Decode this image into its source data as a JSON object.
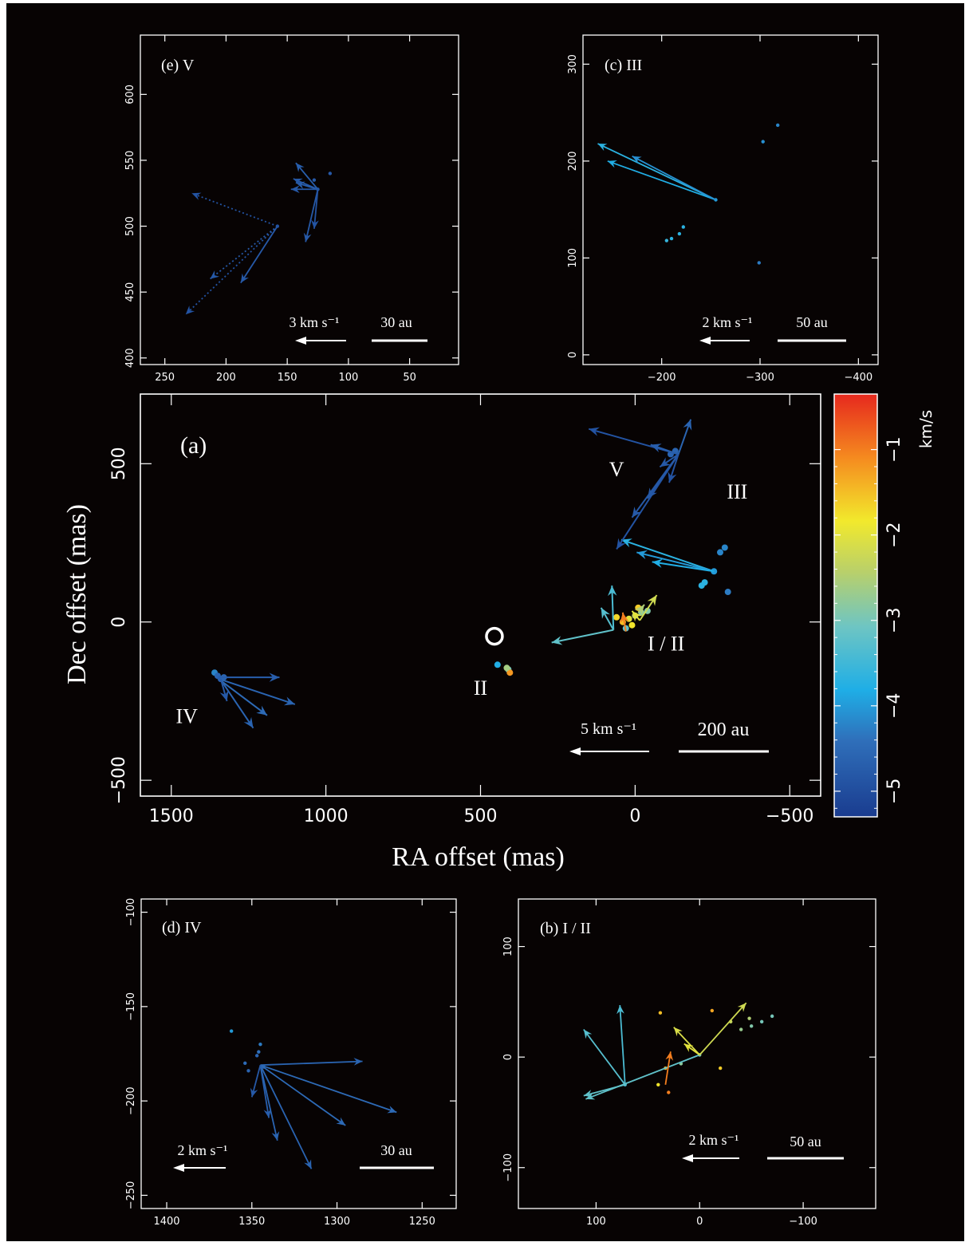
{
  "colorbar": {
    "label": "km/s",
    "tick_labels": [
      "−1",
      "−2",
      "−3",
      "−4",
      "−5"
    ],
    "range": [
      -5.3,
      -0.35
    ],
    "colormap": "jet"
  },
  "chart_data": [
    {
      "id": "a",
      "type": "scatter",
      "title": "(a)",
      "xlabel": "RA offset (mas)",
      "ylabel": "Dec offset (mas)",
      "xlim": [
        1600,
        -600
      ],
      "ylim": [
        -550,
        720
      ],
      "xticks": [
        1500,
        1000,
        500,
        0,
        -500
      ],
      "xtick_labels": [
        "1500",
        "1000",
        "500",
        "0",
        "−500"
      ],
      "yticks": [
        500,
        0,
        -500
      ],
      "ytick_labels": [
        "500",
        "0",
        "−500"
      ],
      "group_labels": [
        {
          "text": "V",
          "x": 60,
          "y": 460
        },
        {
          "text": "III",
          "x": -330,
          "y": 390
        },
        {
          "text": "I / II",
          "x": -100,
          "y": -90
        },
        {
          "text": "II",
          "x": 500,
          "y": -230
        },
        {
          "text": "IV",
          "x": 1450,
          "y": -320
        }
      ],
      "velocity_scale_label": "5 km s⁻¹",
      "length_scale_label": "200 au",
      "reference_marker": {
        "x": 455,
        "y": -45
      },
      "spots": [
        {
          "x": 1360,
          "y": -160,
          "v": -4.2
        },
        {
          "x": 1350,
          "y": -170,
          "v": -4.6
        },
        {
          "x": 1340,
          "y": -180,
          "v": -4.7
        },
        {
          "x": 1330,
          "y": -175,
          "v": -4.6
        },
        {
          "x": 445,
          "y": -135,
          "v": -3.8
        },
        {
          "x": 410,
          "y": -150,
          "v": -3.0
        },
        {
          "x": 405,
          "y": -160,
          "v": -1.2
        },
        {
          "x": 415,
          "y": -145,
          "v": -2.6
        },
        {
          "x": 30,
          "y": -20,
          "v": -3.2
        },
        {
          "x": 20,
          "y": 10,
          "v": -2.0
        },
        {
          "x": 0,
          "y": 20,
          "v": -2.4
        },
        {
          "x": -20,
          "y": 30,
          "v": -2.8
        },
        {
          "x": -40,
          "y": 35,
          "v": -2.9
        },
        {
          "x": 10,
          "y": -10,
          "v": -1.8
        },
        {
          "x": 40,
          "y": 0,
          "v": -1.5
        },
        {
          "x": 60,
          "y": 15,
          "v": -1.7
        },
        {
          "x": -10,
          "y": 45,
          "v": -1.6
        },
        {
          "x": -255,
          "y": 160,
          "v": -4.0
        },
        {
          "x": -275,
          "y": 220,
          "v": -4.2
        },
        {
          "x": -290,
          "y": 235,
          "v": -4.2
        },
        {
          "x": -215,
          "y": 115,
          "v": -3.7
        },
        {
          "x": -225,
          "y": 125,
          "v": -3.7
        },
        {
          "x": -300,
          "y": 95,
          "v": -4.3
        },
        {
          "x": -115,
          "y": 530,
          "v": -4.6
        },
        {
          "x": -130,
          "y": 540,
          "v": -4.6
        }
      ],
      "vectors": [
        {
          "x": 1345,
          "y": -175,
          "dx": -195,
          "dy": 0,
          "v": -4.7
        },
        {
          "x": 1345,
          "y": -180,
          "dx": -245,
          "dy": -80,
          "v": -4.6
        },
        {
          "x": 1340,
          "y": -185,
          "dx": -150,
          "dy": -110,
          "v": -4.5
        },
        {
          "x": 1335,
          "y": -190,
          "dx": -100,
          "dy": -145,
          "v": -4.6
        },
        {
          "x": 1340,
          "y": -180,
          "dx": -20,
          "dy": -70,
          "v": -4.8
        },
        {
          "x": 70,
          "y": -25,
          "dx": 5,
          "dy": 140,
          "v": -3.4
        },
        {
          "x": 70,
          "y": -25,
          "dx": 40,
          "dy": 70,
          "v": -3.3
        },
        {
          "x": 70,
          "y": -25,
          "dx": 200,
          "dy": -40,
          "v": -3.2
        },
        {
          "x": -15,
          "y": 5,
          "dx": -55,
          "dy": 80,
          "v": -2.2
        },
        {
          "x": -15,
          "y": 5,
          "dx": 25,
          "dy": 30,
          "v": -2.0
        },
        {
          "x": 30,
          "y": -30,
          "dx": 10,
          "dy": 60,
          "v": -1.0
        },
        {
          "x": -10,
          "y": 30,
          "dx": -20,
          "dy": 25,
          "v": -2.5
        },
        {
          "x": -255,
          "y": 160,
          "dx": 300,
          "dy": 100,
          "v": -3.7
        },
        {
          "x": -255,
          "y": 160,
          "dx": 250,
          "dy": 60,
          "v": -4.0
        },
        {
          "x": -255,
          "y": 160,
          "dx": 200,
          "dy": 30,
          "v": -3.8
        },
        {
          "x": -140,
          "y": 530,
          "dx": 290,
          "dy": 80,
          "v": -4.9
        },
        {
          "x": -140,
          "y": 530,
          "dx": 200,
          "dy": -300,
          "v": -4.9
        },
        {
          "x": -140,
          "y": 530,
          "dx": 150,
          "dy": -200,
          "v": -4.8
        },
        {
          "x": -140,
          "y": 530,
          "dx": 100,
          "dy": -140,
          "v": -4.8
        },
        {
          "x": -140,
          "y": 530,
          "dx": -40,
          "dy": 110,
          "v": -4.6
        },
        {
          "x": -140,
          "y": 530,
          "dx": 90,
          "dy": 30,
          "v": -4.7
        },
        {
          "x": -140,
          "y": 530,
          "dx": 30,
          "dy": -90,
          "v": -4.9
        },
        {
          "x": -140,
          "y": 530,
          "dx": 60,
          "dy": -40,
          "v": -4.8
        }
      ]
    },
    {
      "id": "b",
      "type": "scatter",
      "title": "(b)  I / II",
      "xlim": [
        175,
        -170
      ],
      "ylim": [
        -137,
        143
      ],
      "xticks": [
        100,
        0,
        -100
      ],
      "xtick_labels": [
        "100",
        "0",
        "−100"
      ],
      "yticks": [
        100,
        0,
        -100
      ],
      "ytick_labels": [
        "100",
        "0",
        "−100"
      ],
      "velocity_scale_label": "2 km s⁻¹",
      "length_scale_label": "50 au",
      "spots": [
        {
          "x": 72,
          "y": -25,
          "v": -3.4
        },
        {
          "x": 40,
          "y": -25,
          "v": -1.8
        },
        {
          "x": 30,
          "y": -32,
          "v": -1.0
        },
        {
          "x": 33,
          "y": -10,
          "v": -1.4
        },
        {
          "x": 38,
          "y": 40,
          "v": -1.5
        },
        {
          "x": -12,
          "y": 42,
          "v": -1.3
        },
        {
          "x": -20,
          "y": -10,
          "v": -1.6
        },
        {
          "x": -30,
          "y": 32,
          "v": -2.3
        },
        {
          "x": -40,
          "y": 25,
          "v": -2.7
        },
        {
          "x": -50,
          "y": 28,
          "v": -2.9
        },
        {
          "x": -60,
          "y": 32,
          "v": -3.0
        },
        {
          "x": -70,
          "y": 37,
          "v": -3.0
        },
        {
          "x": -48,
          "y": 35,
          "v": -2.5
        },
        {
          "x": 0,
          "y": 2,
          "v": -2.9
        },
        {
          "x": 18,
          "y": -6,
          "v": -2.8
        }
      ],
      "vectors": [
        {
          "x": 72,
          "y": -25,
          "dx": 5,
          "dy": 72,
          "v": -3.4
        },
        {
          "x": 72,
          "y": -25,
          "dx": 40,
          "dy": 50,
          "v": -3.3
        },
        {
          "x": 72,
          "y": -25,
          "dx": 40,
          "dy": -10,
          "v": -3.2
        },
        {
          "x": 0,
          "y": 2,
          "dx": 110,
          "dy": -40,
          "v": -3.2
        },
        {
          "x": 0,
          "y": 2,
          "dx": -45,
          "dy": 47,
          "v": -2.2
        },
        {
          "x": 0,
          "y": 2,
          "dx": 25,
          "dy": 25,
          "v": -2.1
        },
        {
          "x": 0,
          "y": 2,
          "dx": 15,
          "dy": 10,
          "v": -2.0
        },
        {
          "x": 33,
          "y": -25,
          "dx": -5,
          "dy": 30,
          "v": -1.0
        }
      ]
    },
    {
      "id": "c",
      "type": "scatter",
      "title": "(c)  III",
      "xlim": [
        -120,
        -420
      ],
      "ylim": [
        -10,
        330
      ],
      "xticks": [
        -200,
        -300,
        -400
      ],
      "xtick_labels": [
        "−200",
        "−300",
        "−400"
      ],
      "yticks": [
        0,
        100,
        200,
        300
      ],
      "ytick_labels": [
        "0",
        "100",
        "200",
        "300"
      ],
      "velocity_scale_label": "2 km s⁻¹",
      "length_scale_label": "50 au",
      "spots": [
        {
          "x": -255,
          "y": 160,
          "v": -4.0
        },
        {
          "x": -303,
          "y": 220,
          "v": -4.1
        },
        {
          "x": -318,
          "y": 237,
          "v": -4.2
        },
        {
          "x": -205,
          "y": 118,
          "v": -3.6
        },
        {
          "x": -210,
          "y": 120,
          "v": -3.7
        },
        {
          "x": -218,
          "y": 125,
          "v": -3.7
        },
        {
          "x": -222,
          "y": 132,
          "v": -3.7
        },
        {
          "x": -299,
          "y": 95,
          "v": -4.3
        }
      ],
      "vectors": [
        {
          "x": -255,
          "y": 160,
          "dx": 120,
          "dy": 58,
          "v": -3.7
        },
        {
          "x": -255,
          "y": 160,
          "dx": 110,
          "dy": 40,
          "v": -3.8
        },
        {
          "x": -255,
          "y": 160,
          "dx": 85,
          "dy": 45,
          "v": -4.1
        }
      ]
    },
    {
      "id": "d",
      "type": "scatter",
      "title": "(d)  IV",
      "xlim": [
        1415,
        1230
      ],
      "ylim": [
        -257,
        -93
      ],
      "xticks": [
        1400,
        1350,
        1300,
        1250
      ],
      "xtick_labels": [
        "1400",
        "1350",
        "1300",
        "1250"
      ],
      "yticks": [
        -100,
        -150,
        -200,
        -250
      ],
      "ytick_labels": [
        "−100",
        "−150",
        "−200",
        "−250"
      ],
      "velocity_scale_label": "2 km s⁻¹",
      "length_scale_label": "30 au",
      "spots": [
        {
          "x": 1362,
          "y": -163,
          "v": -4.0
        },
        {
          "x": 1345,
          "y": -170,
          "v": -4.3
        },
        {
          "x": 1346,
          "y": -174,
          "v": -4.4
        },
        {
          "x": 1354,
          "y": -180,
          "v": -4.5
        },
        {
          "x": 1352,
          "y": -184,
          "v": -4.6
        },
        {
          "x": 1347,
          "y": -176,
          "v": -4.6
        },
        {
          "x": 1343,
          "y": -182,
          "v": -4.5
        }
      ],
      "vectors": [
        {
          "x": 1345,
          "y": -181,
          "dx": -60,
          "dy": 2,
          "v": -4.6
        },
        {
          "x": 1345,
          "y": -181,
          "dx": -80,
          "dy": -25,
          "v": -4.5
        },
        {
          "x": 1345,
          "y": -181,
          "dx": -50,
          "dy": -32,
          "v": -4.5
        },
        {
          "x": 1345,
          "y": -181,
          "dx": -30,
          "dy": -55,
          "v": -4.6
        },
        {
          "x": 1345,
          "y": -181,
          "dx": -5,
          "dy": -28,
          "v": -4.7
        },
        {
          "x": 1345,
          "y": -181,
          "dx": -10,
          "dy": -40,
          "v": -4.6
        },
        {
          "x": 1345,
          "y": -181,
          "dx": 5,
          "dy": -17,
          "v": -4.8
        }
      ]
    },
    {
      "id": "e",
      "type": "scatter",
      "title": "(e)  V",
      "xlim": [
        270,
        10
      ],
      "ylim": [
        395,
        645
      ],
      "xticks": [
        250,
        200,
        150,
        100,
        50
      ],
      "xtick_labels": [
        "250",
        "200",
        "150",
        "100",
        "50"
      ],
      "yticks": [
        400,
        450,
        500,
        550,
        600
      ],
      "ytick_labels": [
        "400",
        "450",
        "500",
        "550",
        "600"
      ],
      "velocity_scale_label": "3 km s⁻¹",
      "length_scale_label": "30 au",
      "spots": [
        {
          "x": 125,
          "y": 528,
          "v": -4.8
        },
        {
          "x": 128,
          "y": 535,
          "v": -4.8
        },
        {
          "x": 158,
          "y": 500,
          "v": -4.9
        },
        {
          "x": 115,
          "y": 540,
          "v": -4.8
        }
      ],
      "vectors": [
        {
          "x": 158,
          "y": 500,
          "dx": 70,
          "dy": 25,
          "v": -4.9
        },
        {
          "x": 158,
          "y": 500,
          "dx": 75,
          "dy": -67,
          "v": -4.9
        },
        {
          "x": 158,
          "y": 500,
          "dx": 55,
          "dy": -40,
          "v": -4.8
        },
        {
          "x": 158,
          "y": 500,
          "dx": 30,
          "dy": -43,
          "v": -4.8
        },
        {
          "x": 125,
          "y": 528,
          "dx": 18,
          "dy": 20,
          "v": -4.7
        },
        {
          "x": 125,
          "y": 528,
          "dx": 22,
          "dy": 0,
          "v": -4.8
        },
        {
          "x": 125,
          "y": 528,
          "dx": 10,
          "dy": -40,
          "v": -4.8
        },
        {
          "x": 125,
          "y": 528,
          "dx": 3,
          "dy": -30,
          "v": -4.9
        },
        {
          "x": 125,
          "y": 528,
          "dx": 18,
          "dy": 5,
          "v": -4.7
        },
        {
          "x": 125,
          "y": 528,
          "dx": 20,
          "dy": 8,
          "v": -4.8
        }
      ]
    }
  ]
}
